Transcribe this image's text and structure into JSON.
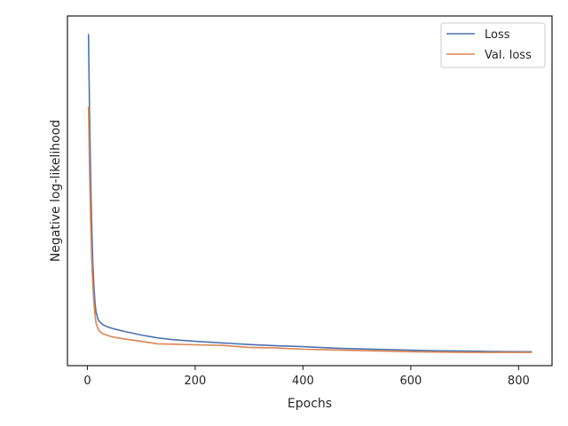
{
  "chart_data": {
    "type": "line",
    "title": "",
    "xlabel": "Epochs",
    "ylabel": "Negative log-likelihood",
    "xlim": [
      -37,
      862
    ],
    "x_ticks": [
      0,
      200,
      400,
      600,
      800
    ],
    "y_tick_labels_shown": false,
    "grid": false,
    "legend": {
      "placement": "top-right"
    },
    "series": [
      {
        "name": "Loss",
        "color": "#4c72b0",
        "points": [
          [
            2,
            1.05
          ],
          [
            4,
            0.8
          ],
          [
            6,
            0.6
          ],
          [
            8,
            0.45
          ],
          [
            10,
            0.33
          ],
          [
            12,
            0.25
          ],
          [
            14,
            0.2
          ],
          [
            16,
            0.17
          ],
          [
            20,
            0.145
          ],
          [
            25,
            0.135
          ],
          [
            30,
            0.128
          ],
          [
            40,
            0.121
          ],
          [
            50,
            0.116
          ],
          [
            70,
            0.108
          ],
          [
            100,
            0.097
          ],
          [
            130,
            0.088
          ],
          [
            160,
            0.082
          ],
          [
            200,
            0.077
          ],
          [
            250,
            0.072
          ],
          [
            300,
            0.067
          ],
          [
            350,
            0.063
          ],
          [
            400,
            0.06
          ],
          [
            450,
            0.056
          ],
          [
            500,
            0.053
          ],
          [
            550,
            0.051
          ],
          [
            600,
            0.049
          ],
          [
            650,
            0.047
          ],
          [
            700,
            0.046
          ],
          [
            750,
            0.045
          ],
          [
            800,
            0.044
          ],
          [
            825,
            0.044
          ]
        ]
      },
      {
        "name": "Val. loss",
        "color": "#dd8452",
        "points": [
          [
            2,
            0.82
          ],
          [
            4,
            0.62
          ],
          [
            6,
            0.46
          ],
          [
            8,
            0.34
          ],
          [
            10,
            0.26
          ],
          [
            12,
            0.2
          ],
          [
            14,
            0.16
          ],
          [
            16,
            0.135
          ],
          [
            20,
            0.115
          ],
          [
            25,
            0.105
          ],
          [
            30,
            0.1
          ],
          [
            40,
            0.094
          ],
          [
            50,
            0.09
          ],
          [
            70,
            0.084
          ],
          [
            100,
            0.077
          ],
          [
            130,
            0.069
          ],
          [
            160,
            0.068
          ],
          [
            200,
            0.066
          ],
          [
            250,
            0.064
          ],
          [
            300,
            0.058
          ],
          [
            350,
            0.056
          ],
          [
            400,
            0.052
          ],
          [
            450,
            0.05
          ],
          [
            500,
            0.048
          ],
          [
            550,
            0.046
          ],
          [
            600,
            0.044
          ],
          [
            650,
            0.043
          ],
          [
            700,
            0.042
          ],
          [
            750,
            0.042
          ],
          [
            800,
            0.042
          ],
          [
            825,
            0.042
          ]
        ]
      }
    ]
  }
}
